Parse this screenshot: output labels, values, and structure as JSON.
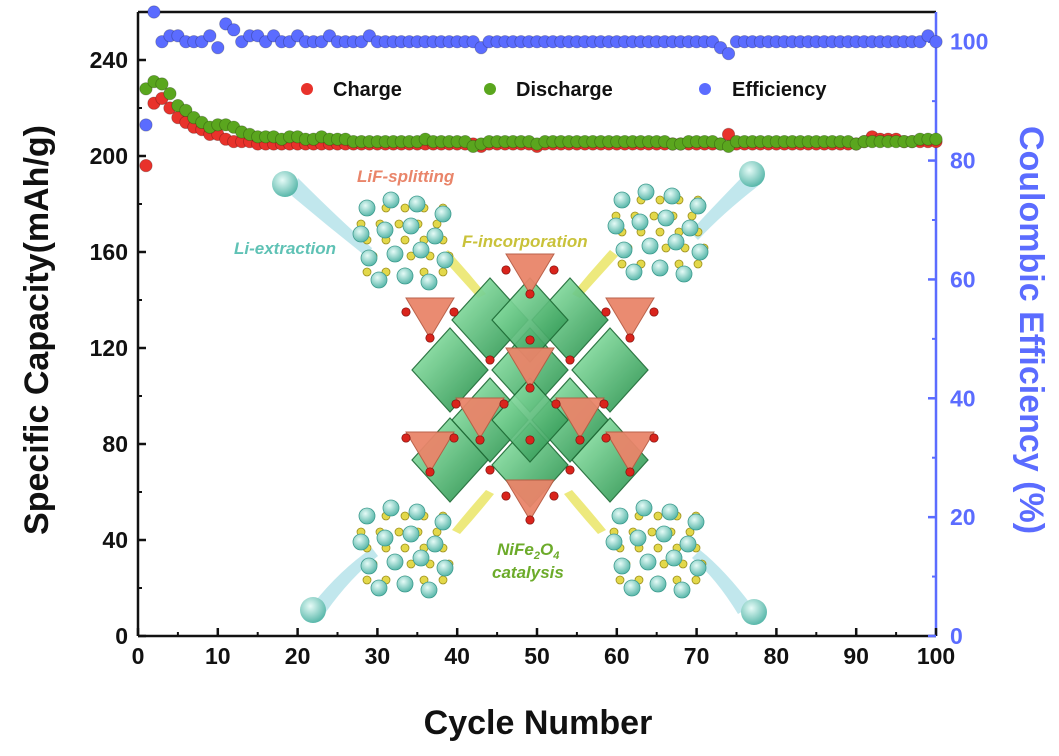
{
  "chart_data": {
    "type": "scatter",
    "xlabel": "Cycle Number",
    "ylabel": "Specific Capacity(mAh/g)",
    "y2label": "Coulombic Efficiency (%)",
    "xlim": [
      0,
      100
    ],
    "ylim": [
      0,
      260
    ],
    "y2lim": [
      0,
      105
    ],
    "xticks": [
      "0",
      "10",
      "20",
      "30",
      "40",
      "50",
      "60",
      "70",
      "80",
      "90",
      "100"
    ],
    "yticks": [
      "0",
      "40",
      "80",
      "120",
      "160",
      "200",
      "240"
    ],
    "y2ticks": [
      "0",
      "20",
      "40",
      "60",
      "80",
      "100"
    ],
    "grid": false,
    "legend_position": "top",
    "series": [
      {
        "name": "Charge",
        "axis": "left",
        "color": "#e8322b",
        "x": [
          1,
          2,
          3,
          4,
          5,
          6,
          7,
          8,
          9,
          10,
          11,
          12,
          13,
          14,
          15,
          16,
          17,
          18,
          19,
          20,
          21,
          22,
          23,
          24,
          25,
          26,
          27,
          28,
          29,
          30,
          31,
          32,
          33,
          34,
          35,
          36,
          37,
          38,
          39,
          40,
          41,
          42,
          43,
          44,
          45,
          46,
          47,
          48,
          49,
          50,
          51,
          52,
          53,
          54,
          55,
          56,
          57,
          58,
          59,
          60,
          61,
          62,
          63,
          64,
          65,
          66,
          67,
          68,
          69,
          70,
          71,
          72,
          73,
          74,
          75,
          76,
          77,
          78,
          79,
          80,
          81,
          82,
          83,
          84,
          85,
          86,
          87,
          88,
          89,
          90,
          91,
          92,
          93,
          94,
          95,
          96,
          97,
          98,
          99,
          100
        ],
        "y": [
          196,
          222,
          224,
          220,
          216,
          214,
          212,
          211,
          209,
          209,
          207,
          206,
          206,
          206,
          205,
          205,
          205,
          205,
          205,
          205,
          205,
          205,
          205,
          205,
          205,
          205,
          205,
          205,
          205,
          205,
          205,
          205,
          205,
          205,
          205,
          205,
          205,
          205,
          205,
          205,
          205,
          205,
          204,
          205,
          205,
          205,
          205,
          205,
          205,
          204,
          205,
          205,
          205,
          205,
          205,
          205,
          205,
          205,
          205,
          205,
          205,
          205,
          205,
          205,
          205,
          205,
          205,
          205,
          205,
          205,
          205,
          205,
          205,
          209,
          205,
          205,
          205,
          205,
          205,
          205,
          205,
          205,
          205,
          205,
          205,
          205,
          205,
          205,
          205,
          205,
          206,
          208,
          207,
          207,
          207,
          206,
          206,
          206,
          206,
          206
        ]
      },
      {
        "name": "Discharge",
        "axis": "left",
        "color": "#5aa61e",
        "x": [
          1,
          2,
          3,
          4,
          5,
          6,
          7,
          8,
          9,
          10,
          11,
          12,
          13,
          14,
          15,
          16,
          17,
          18,
          19,
          20,
          21,
          22,
          23,
          24,
          25,
          26,
          27,
          28,
          29,
          30,
          31,
          32,
          33,
          34,
          35,
          36,
          37,
          38,
          39,
          40,
          41,
          42,
          43,
          44,
          45,
          46,
          47,
          48,
          49,
          50,
          51,
          52,
          53,
          54,
          55,
          56,
          57,
          58,
          59,
          60,
          61,
          62,
          63,
          64,
          65,
          66,
          67,
          68,
          69,
          70,
          71,
          72,
          73,
          74,
          75,
          76,
          77,
          78,
          79,
          80,
          81,
          82,
          83,
          84,
          85,
          86,
          87,
          88,
          89,
          90,
          91,
          92,
          93,
          94,
          95,
          96,
          97,
          98,
          99,
          100
        ],
        "y": [
          228,
          231,
          230,
          226,
          221,
          219,
          216,
          214,
          212,
          213,
          213,
          212,
          210,
          209,
          208,
          208,
          208,
          207,
          208,
          208,
          207,
          207,
          208,
          207,
          207,
          207,
          206,
          206,
          206,
          206,
          206,
          206,
          206,
          206,
          206,
          207,
          206,
          206,
          206,
          206,
          206,
          204,
          205,
          206,
          206,
          206,
          206,
          206,
          206,
          205,
          206,
          206,
          206,
          206,
          206,
          206,
          206,
          206,
          206,
          206,
          206,
          206,
          206,
          206,
          206,
          206,
          205,
          205,
          206,
          206,
          206,
          206,
          205,
          204,
          206,
          206,
          206,
          206,
          206,
          206,
          206,
          206,
          206,
          206,
          206,
          206,
          206,
          206,
          206,
          205,
          206,
          206,
          206,
          206,
          206,
          206,
          206,
          207,
          207,
          207
        ]
      },
      {
        "name": "Efficiency",
        "axis": "right",
        "color": "#5b6cff",
        "x": [
          1,
          2,
          3,
          4,
          5,
          6,
          7,
          8,
          9,
          10,
          11,
          12,
          13,
          14,
          15,
          16,
          17,
          18,
          19,
          20,
          21,
          22,
          23,
          24,
          25,
          26,
          27,
          28,
          29,
          30,
          31,
          32,
          33,
          34,
          35,
          36,
          37,
          38,
          39,
          40,
          41,
          42,
          43,
          44,
          45,
          46,
          47,
          48,
          49,
          50,
          51,
          52,
          53,
          54,
          55,
          56,
          57,
          58,
          59,
          60,
          61,
          62,
          63,
          64,
          65,
          66,
          67,
          68,
          69,
          70,
          71,
          72,
          73,
          74,
          75,
          76,
          77,
          78,
          79,
          80,
          81,
          82,
          83,
          84,
          85,
          86,
          87,
          88,
          89,
          90,
          91,
          92,
          93,
          94,
          95,
          96,
          97,
          98,
          99,
          100
        ],
        "y": [
          86,
          105,
          100,
          101,
          101,
          100,
          100,
          100,
          101,
          99,
          103,
          102,
          100,
          101,
          101,
          100,
          101,
          100,
          100,
          101,
          100,
          100,
          100,
          101,
          100,
          100,
          100,
          100,
          101,
          100,
          100,
          100,
          100,
          100,
          100,
          100,
          100,
          100,
          100,
          100,
          100,
          100,
          99,
          100,
          100,
          100,
          100,
          100,
          100,
          100,
          100,
          100,
          100,
          100,
          100,
          100,
          100,
          100,
          100,
          100,
          100,
          100,
          100,
          100,
          100,
          100,
          100,
          100,
          100,
          100,
          100,
          100,
          99,
          98,
          100,
          100,
          100,
          100,
          100,
          100,
          100,
          100,
          100,
          100,
          100,
          100,
          100,
          100,
          100,
          100,
          100,
          100,
          100,
          100,
          100,
          100,
          100,
          100,
          101,
          100
        ]
      }
    ]
  },
  "inset": {
    "labels": {
      "lif_splitting": "LiF-splitting",
      "li_extraction": "Li-extraction",
      "f_incorporation": "F-incorporation",
      "catalyst_formula_base": "NiFe",
      "catalyst_sub1": "2",
      "catalyst_mid": "O",
      "catalyst_sub2": "4",
      "catalysis": "catalysis"
    },
    "colors": {
      "octahedron": "#3ec46a",
      "tetrahedron": "#e9856a",
      "oxygen": "#d9241c",
      "li_atom": "#74cfc2",
      "f_atom": "#e3d84a",
      "arrow": "#e8e45c",
      "li_trail": "#a6dde6"
    }
  }
}
